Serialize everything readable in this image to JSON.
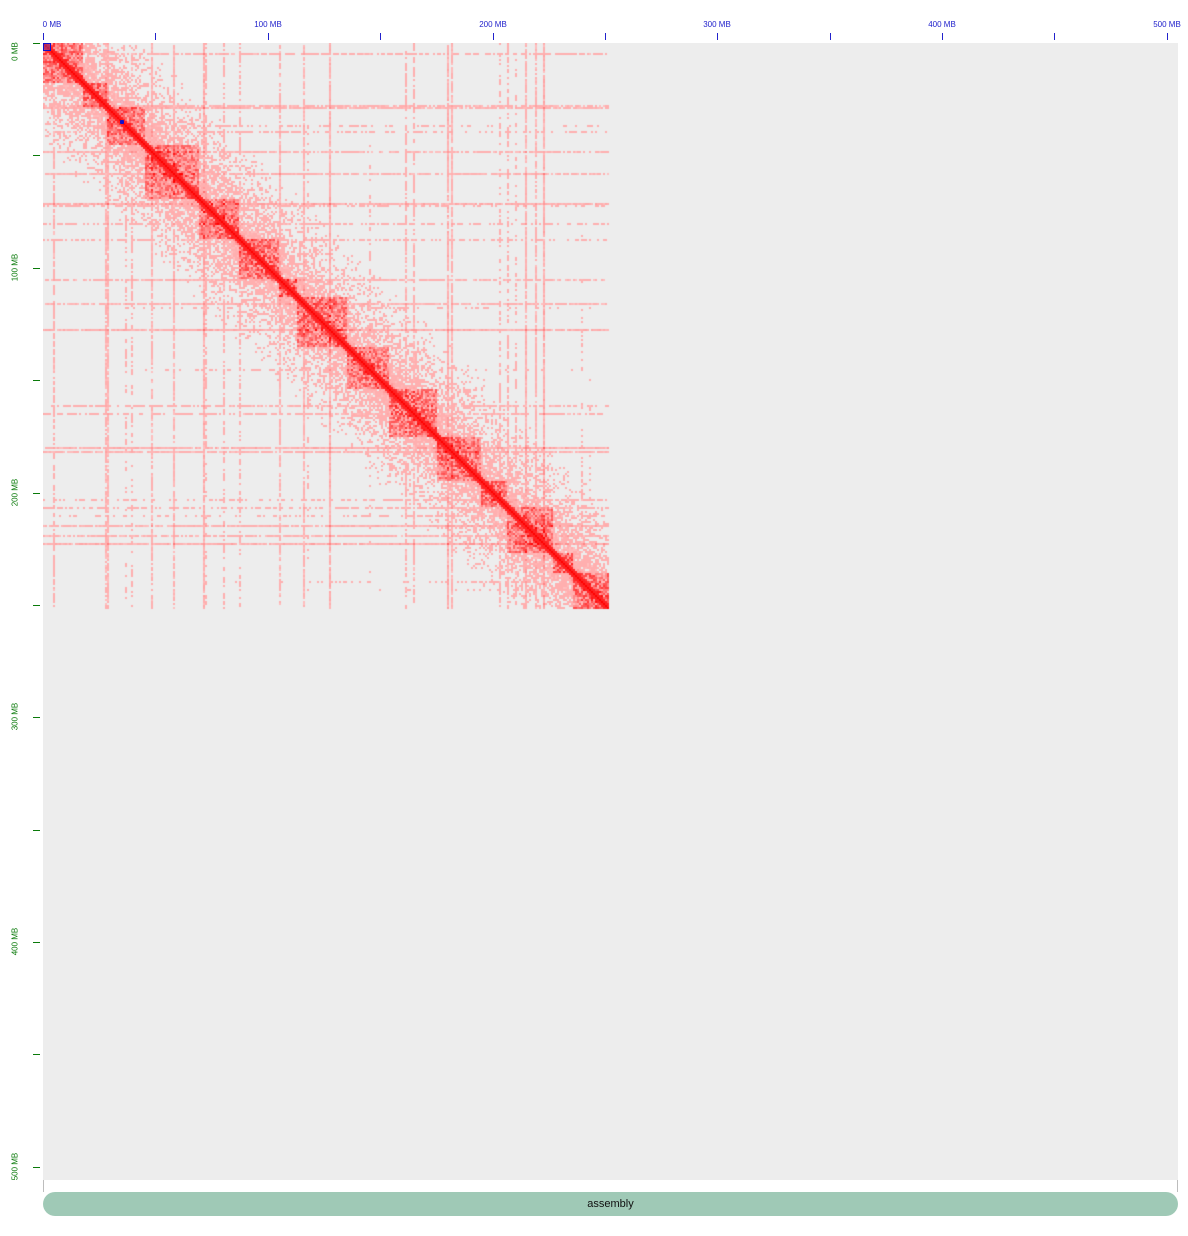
{
  "ruler_top": {
    "labels": [
      "0 MB",
      "100 MB",
      "200 MB",
      "300 MB",
      "400 MB",
      "500 MB"
    ],
    "color": "#2222cc"
  },
  "ruler_left": {
    "labels": [
      "0 MB",
      "100 MB",
      "200 MB",
      "300 MB",
      "400 MB",
      "500 MB"
    ],
    "color": "#0a7a0a"
  },
  "contact_map": {
    "scale_max_mb": 505,
    "data_extent_mb": 252,
    "background_color": "#ededed",
    "signal_color": "#ff0000"
  },
  "track": {
    "label": "assembly",
    "color": "#9fc9b6"
  }
}
